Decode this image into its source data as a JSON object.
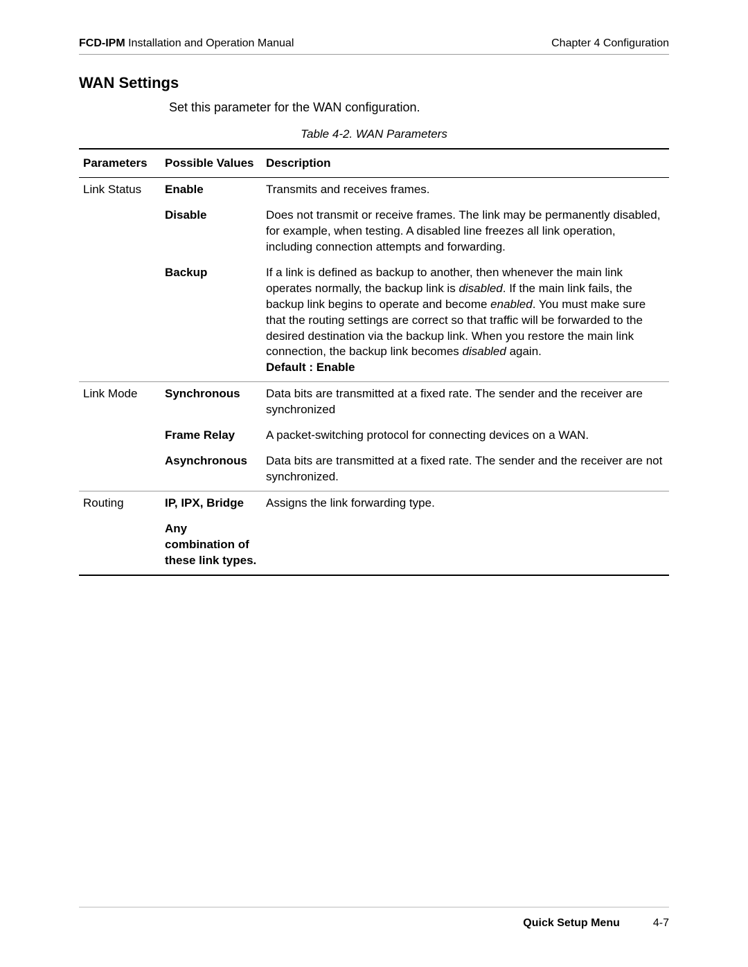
{
  "header": {
    "product": "FCD-IPM",
    "manual": " Installation and Operation Manual",
    "chapter": "Chapter 4  Configuration"
  },
  "section": {
    "title": "WAN Settings",
    "intro": "Set this parameter for the WAN configuration.",
    "caption": "Table 4-2.  WAN Parameters"
  },
  "table": {
    "headers": {
      "parameters": "Parameters",
      "values": "Possible Values",
      "description": "Description"
    },
    "rows": {
      "link_status": {
        "param": "Link Status",
        "enable": {
          "value": "Enable",
          "desc": "Transmits and receives frames."
        },
        "disable": {
          "value": "Disable",
          "desc": "Does not transmit or receive frames. The link may be permanently disabled, for example, when testing. A disabled line freezes all link operation, including connection attempts and forwarding."
        },
        "backup": {
          "value": "Backup",
          "desc_part1": "If a link is defined as backup to another, then whenever the main link operates normally, the backup link is ",
          "disabled1": "disabled",
          "desc_part2": ". If the main link fails, the backup link begins to operate and become ",
          "enabled": "enabled",
          "desc_part3": ". You must make sure that the routing settings are correct so that traffic will be forwarded to the desired destination via the backup link. When you restore the main link connection, the backup link becomes ",
          "disabled2": "disabled",
          "desc_part4": " again.",
          "default": "Default : Enable"
        }
      },
      "link_mode": {
        "param": "Link Mode",
        "synchronous": {
          "value": "Synchronous",
          "desc": "Data bits are transmitted at a fixed rate. The sender and the receiver are synchronized"
        },
        "frame_relay": {
          "value": "Frame Relay",
          "desc": "A packet-switching protocol for connecting devices on a WAN."
        },
        "asynchronous": {
          "value": "Asynchronous",
          "desc": "Data bits are transmitted at a fixed rate. The sender and the receiver are not synchronized."
        }
      },
      "routing": {
        "param": "Routing",
        "ip": {
          "value": "IP, IPX, Bridge",
          "desc": "Assigns the link forwarding type."
        },
        "any": {
          "value": "Any combination of these link types."
        }
      }
    }
  },
  "footer": {
    "label": "Quick Setup Menu",
    "page": "4-7"
  }
}
